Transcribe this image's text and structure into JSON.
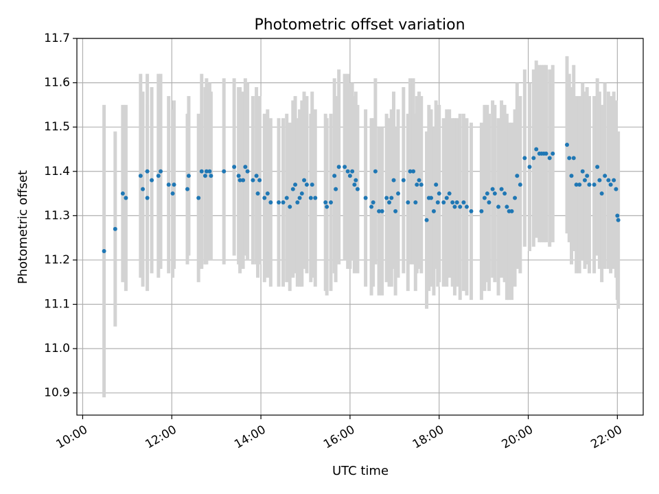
{
  "chart_data": {
    "type": "scatter",
    "title": "Photometric offset variation",
    "xlabel": "UTC time",
    "ylabel": "Photometric offset",
    "x_ticks": [
      "10:00",
      "12:00",
      "14:00",
      "16:00",
      "18:00",
      "20:00",
      "22:00"
    ],
    "y_ticks": [
      "10.9",
      "11.0",
      "11.1",
      "11.2",
      "11.3",
      "11.4",
      "11.5",
      "11.6",
      "11.7"
    ],
    "xlim_hours": [
      9.87,
      22.58
    ],
    "ylim": [
      10.85,
      11.7
    ],
    "grid": true,
    "point_color": "#1f77b4",
    "errorbar_color": "#d3d3d3",
    "series": [
      {
        "points": [
          [
            10.48,
            11.22,
            0.33
          ],
          [
            10.73,
            11.27,
            0.22
          ],
          [
            10.9,
            11.35,
            0.2
          ],
          [
            10.97,
            11.34,
            0.21
          ],
          [
            11.3,
            11.39,
            0.23
          ],
          [
            11.35,
            11.36,
            0.22
          ],
          [
            11.45,
            11.34,
            0.21
          ],
          [
            11.45,
            11.4,
            0.22
          ],
          [
            11.55,
            11.38,
            0.21
          ],
          [
            11.7,
            11.39,
            0.23
          ],
          [
            11.75,
            11.4,
            0.22
          ],
          [
            11.93,
            11.37,
            0.2
          ],
          [
            12.02,
            11.35,
            0.19
          ],
          [
            12.05,
            11.37,
            0.19
          ],
          [
            12.35,
            11.36,
            0.17
          ],
          [
            12.38,
            11.39,
            0.18
          ],
          [
            12.6,
            11.34,
            0.19
          ],
          [
            12.67,
            11.4,
            0.22
          ],
          [
            12.75,
            11.39,
            0.2
          ],
          [
            12.78,
            11.4,
            0.21
          ],
          [
            12.85,
            11.4,
            0.2
          ],
          [
            12.88,
            11.39,
            0.19
          ],
          [
            13.17,
            11.4,
            0.21
          ],
          [
            13.4,
            11.41,
            0.2
          ],
          [
            13.5,
            11.39,
            0.2
          ],
          [
            13.53,
            11.38,
            0.21
          ],
          [
            13.6,
            11.38,
            0.2
          ],
          [
            13.65,
            11.41,
            0.2
          ],
          [
            13.7,
            11.4,
            0.2
          ],
          [
            13.82,
            11.38,
            0.19
          ],
          [
            13.9,
            11.39,
            0.2
          ],
          [
            13.93,
            11.35,
            0.19
          ],
          [
            13.97,
            11.38,
            0.19
          ],
          [
            14.08,
            11.34,
            0.19
          ],
          [
            14.15,
            11.35,
            0.19
          ],
          [
            14.22,
            11.33,
            0.19
          ],
          [
            14.4,
            11.33,
            0.19
          ],
          [
            14.5,
            11.33,
            0.19
          ],
          [
            14.58,
            11.34,
            0.19
          ],
          [
            14.65,
            11.32,
            0.19
          ],
          [
            14.72,
            11.36,
            0.2
          ],
          [
            14.77,
            11.37,
            0.2
          ],
          [
            14.82,
            11.33,
            0.19
          ],
          [
            14.87,
            11.34,
            0.2
          ],
          [
            14.92,
            11.35,
            0.21
          ],
          [
            14.97,
            11.38,
            0.2
          ],
          [
            15.03,
            11.37,
            0.2
          ],
          [
            15.12,
            11.34,
            0.19
          ],
          [
            15.15,
            11.37,
            0.21
          ],
          [
            15.22,
            11.34,
            0.2
          ],
          [
            15.45,
            11.33,
            0.2
          ],
          [
            15.48,
            11.32,
            0.2
          ],
          [
            15.57,
            11.33,
            0.2
          ],
          [
            15.65,
            11.39,
            0.22
          ],
          [
            15.68,
            11.36,
            0.21
          ],
          [
            15.75,
            11.41,
            0.22
          ],
          [
            15.88,
            11.41,
            0.21
          ],
          [
            15.95,
            11.4,
            0.22
          ],
          [
            16.0,
            11.39,
            0.21
          ],
          [
            16.05,
            11.4,
            0.2
          ],
          [
            16.1,
            11.37,
            0.2
          ],
          [
            16.13,
            11.38,
            0.2
          ],
          [
            16.17,
            11.36,
            0.19
          ],
          [
            16.35,
            11.34,
            0.2
          ],
          [
            16.48,
            11.32,
            0.2
          ],
          [
            16.52,
            11.33,
            0.19
          ],
          [
            16.57,
            11.4,
            0.21
          ],
          [
            16.65,
            11.31,
            0.19
          ],
          [
            16.72,
            11.31,
            0.19
          ],
          [
            16.82,
            11.34,
            0.19
          ],
          [
            16.88,
            11.33,
            0.19
          ],
          [
            16.93,
            11.34,
            0.2
          ],
          [
            16.98,
            11.38,
            0.2
          ],
          [
            17.02,
            11.31,
            0.19
          ],
          [
            17.08,
            11.35,
            0.19
          ],
          [
            17.2,
            11.38,
            0.21
          ],
          [
            17.3,
            11.33,
            0.2
          ],
          [
            17.35,
            11.4,
            0.21
          ],
          [
            17.42,
            11.4,
            0.21
          ],
          [
            17.47,
            11.33,
            0.2
          ],
          [
            17.5,
            11.37,
            0.2
          ],
          [
            17.55,
            11.38,
            0.2
          ],
          [
            17.6,
            11.37,
            0.2
          ],
          [
            17.72,
            11.29,
            0.2
          ],
          [
            17.77,
            11.34,
            0.21
          ],
          [
            17.82,
            11.34,
            0.2
          ],
          [
            17.88,
            11.31,
            0.19
          ],
          [
            17.93,
            11.37,
            0.19
          ],
          [
            17.97,
            11.33,
            0.19
          ],
          [
            18.0,
            11.35,
            0.2
          ],
          [
            18.1,
            11.33,
            0.19
          ],
          [
            18.17,
            11.34,
            0.2
          ],
          [
            18.23,
            11.35,
            0.19
          ],
          [
            18.3,
            11.33,
            0.19
          ],
          [
            18.35,
            11.32,
            0.2
          ],
          [
            18.4,
            11.33,
            0.19
          ],
          [
            18.47,
            11.32,
            0.21
          ],
          [
            18.55,
            11.33,
            0.2
          ],
          [
            18.62,
            11.32,
            0.2
          ],
          [
            18.72,
            11.31,
            0.2
          ],
          [
            18.95,
            11.31,
            0.2
          ],
          [
            19.02,
            11.34,
            0.21
          ],
          [
            19.08,
            11.35,
            0.2
          ],
          [
            19.12,
            11.33,
            0.2
          ],
          [
            19.2,
            11.36,
            0.2
          ],
          [
            19.25,
            11.35,
            0.2
          ],
          [
            19.33,
            11.32,
            0.2
          ],
          [
            19.4,
            11.36,
            0.2
          ],
          [
            19.47,
            11.35,
            0.2
          ],
          [
            19.52,
            11.32,
            0.21
          ],
          [
            19.57,
            11.31,
            0.2
          ],
          [
            19.63,
            11.31,
            0.2
          ],
          [
            19.7,
            11.34,
            0.2
          ],
          [
            19.75,
            11.39,
            0.21
          ],
          [
            19.82,
            11.37,
            0.2
          ],
          [
            19.92,
            11.43,
            0.2
          ],
          [
            20.03,
            11.41,
            0.19
          ],
          [
            20.12,
            11.43,
            0.2
          ],
          [
            20.18,
            11.45,
            0.2
          ],
          [
            20.25,
            11.44,
            0.2
          ],
          [
            20.3,
            11.44,
            0.2
          ],
          [
            20.35,
            11.44,
            0.2
          ],
          [
            20.4,
            11.44,
            0.2
          ],
          [
            20.48,
            11.43,
            0.2
          ],
          [
            20.55,
            11.44,
            0.2
          ],
          [
            20.87,
            11.46,
            0.2
          ],
          [
            20.92,
            11.43,
            0.19
          ],
          [
            20.97,
            11.39,
            0.2
          ],
          [
            21.02,
            11.43,
            0.21
          ],
          [
            21.08,
            11.37,
            0.2
          ],
          [
            21.15,
            11.37,
            0.2
          ],
          [
            21.22,
            11.4,
            0.2
          ],
          [
            21.27,
            11.38,
            0.2
          ],
          [
            21.32,
            11.39,
            0.2
          ],
          [
            21.37,
            11.37,
            0.2
          ],
          [
            21.48,
            11.37,
            0.2
          ],
          [
            21.55,
            11.41,
            0.2
          ],
          [
            21.6,
            11.38,
            0.2
          ],
          [
            21.65,
            11.35,
            0.2
          ],
          [
            21.72,
            11.39,
            0.21
          ],
          [
            21.8,
            11.38,
            0.2
          ],
          [
            21.85,
            11.37,
            0.2
          ],
          [
            21.92,
            11.38,
            0.2
          ],
          [
            21.97,
            11.36,
            0.2
          ],
          [
            22.0,
            11.3,
            0.19
          ],
          [
            22.02,
            11.29,
            0.2
          ]
        ]
      }
    ]
  }
}
